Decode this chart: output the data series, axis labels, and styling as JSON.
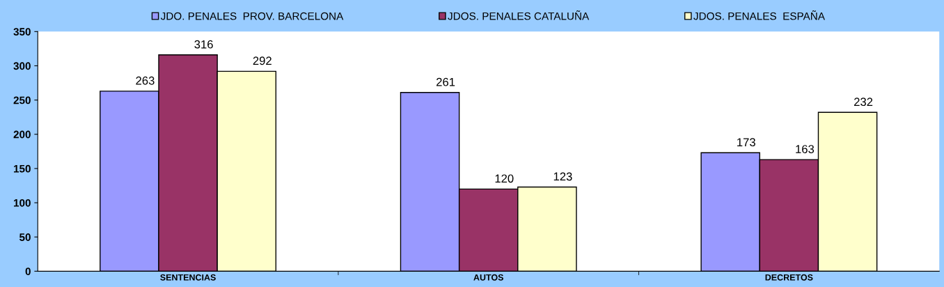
{
  "chart_data": {
    "type": "bar",
    "categories": [
      "SENTENCIAS",
      "AUTOS",
      "DECRETOS"
    ],
    "series": [
      {
        "name": "JDO. PENALES  PROV. BARCELONA",
        "color": "#9999ff",
        "values": [
          263,
          261,
          173
        ]
      },
      {
        "name": "JDOS. PENALES CATALUÑA",
        "color": "#993366",
        "values": [
          316,
          120,
          163
        ]
      },
      {
        "name": "JDOS. PENALES  ESPAÑA",
        "color": "#ffffcc",
        "values": [
          292,
          123,
          232
        ]
      }
    ],
    "ylim": [
      0,
      350
    ],
    "yticks": [
      0,
      50,
      100,
      150,
      200,
      250,
      300,
      350
    ],
    "grid": false,
    "legend": "top",
    "data_labels": true
  }
}
